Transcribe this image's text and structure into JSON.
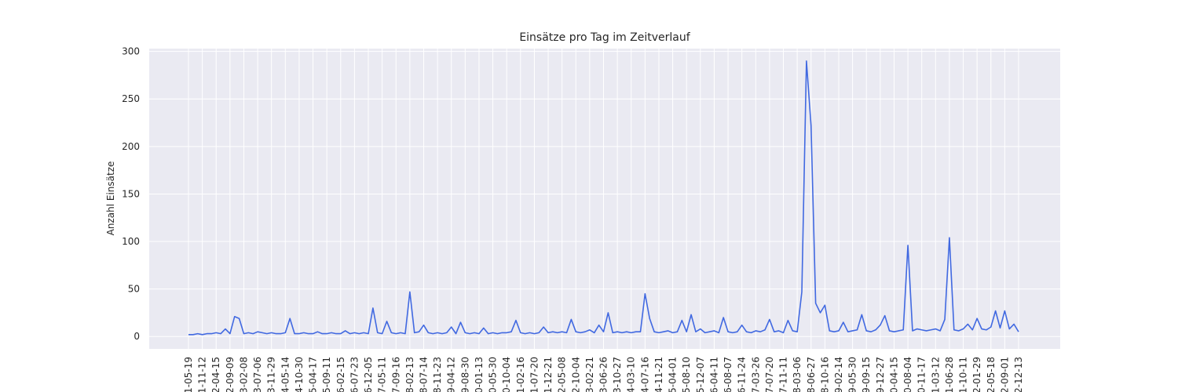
{
  "chart_data": {
    "type": "line",
    "title": "Einsätze pro Tag im Zeitverlauf",
    "y_label": "Anzahl Einsätze",
    "color": "#4169e1",
    "grid": true,
    "ylim": [
      -13,
      303
    ],
    "yticks": [
      0,
      50,
      100,
      150,
      200,
      250,
      300
    ],
    "categories": [
      "1-05-19",
      null,
      null,
      "1-11-12",
      null,
      null,
      "2-04-15",
      null,
      null,
      "2-09-09",
      null,
      null,
      "3-02-08",
      null,
      null,
      "3-07-06",
      null,
      null,
      "3-11-29",
      null,
      null,
      "4-05-14",
      null,
      null,
      "4-10-30",
      null,
      null,
      "5-04-17",
      null,
      null,
      "5-09-11",
      null,
      null,
      "6-02-15",
      null,
      null,
      "6-07-23",
      null,
      null,
      "6-12-05",
      null,
      null,
      "7-05-11",
      null,
      null,
      "7-09-16",
      null,
      null,
      "8-02-13",
      null,
      null,
      "8-07-14",
      null,
      null,
      "8-11-23",
      null,
      null,
      "9-04-12",
      null,
      null,
      "9-08-30",
      null,
      null,
      "0-01-13",
      null,
      null,
      "0-05-30",
      null,
      null,
      "0-10-04",
      null,
      null,
      "1-02-16",
      null,
      null,
      "1-07-20",
      null,
      null,
      "1-12-21",
      null,
      null,
      "2-05-08",
      null,
      null,
      "2-10-04",
      null,
      null,
      "3-02-21",
      null,
      null,
      "3-06-26",
      null,
      null,
      "3-10-27",
      null,
      null,
      "4-03-10",
      null,
      null,
      "4-07-16",
      null,
      null,
      "4-11-21",
      null,
      null,
      "5-04-01",
      null,
      null,
      "5-08-10",
      null,
      null,
      "5-12-07",
      null,
      null,
      "6-04-11",
      null,
      null,
      "6-08-07",
      null,
      null,
      "6-11-24",
      null,
      null,
      "7-03-26",
      null,
      null,
      "7-07-20",
      null,
      null,
      "7-11-11",
      null,
      null,
      "8-03-06",
      null,
      null,
      "8-06-27",
      null,
      null,
      "8-10-16",
      null,
      null,
      "9-02-14",
      null,
      null,
      "9-05-30",
      null,
      null,
      "9-09-15",
      null,
      null,
      "9-12-27",
      null,
      null,
      "0-04-15",
      null,
      null,
      "0-08-04",
      null,
      null,
      "0-11-17",
      null,
      null,
      "1-03-12",
      null,
      null,
      "1-06-28",
      null,
      null,
      "1-10-11",
      null,
      null,
      "2-01-29",
      null,
      null,
      "2-05-18",
      null,
      null,
      "2-09-01",
      null,
      null,
      "2-12-13"
    ],
    "values": [
      2,
      2,
      3,
      2,
      3,
      3,
      4,
      3,
      8,
      3,
      21,
      19,
      3,
      4,
      3,
      5,
      4,
      3,
      4,
      3,
      3,
      4,
      19,
      3,
      3,
      4,
      3,
      3,
      5,
      3,
      3,
      4,
      3,
      3,
      6,
      3,
      4,
      3,
      4,
      3,
      30,
      4,
      3,
      16,
      4,
      3,
      4,
      3,
      47,
      4,
      5,
      12,
      4,
      3,
      4,
      3,
      4,
      10,
      3,
      15,
      4,
      3,
      4,
      3,
      9,
      3,
      4,
      3,
      4,
      4,
      5,
      17,
      4,
      3,
      4,
      3,
      4,
      10,
      4,
      5,
      4,
      5,
      4,
      18,
      5,
      4,
      5,
      7,
      4,
      12,
      5,
      25,
      4,
      5,
      4,
      5,
      4,
      5,
      5,
      45,
      19,
      5,
      4,
      5,
      6,
      4,
      5,
      17,
      5,
      23,
      5,
      8,
      4,
      5,
      6,
      4,
      20,
      5,
      4,
      5,
      12,
      5,
      4,
      6,
      5,
      7,
      18,
      5,
      6,
      4,
      17,
      6,
      5,
      47,
      290,
      222,
      35,
      25,
      33,
      6,
      5,
      6,
      15,
      5,
      6,
      7,
      23,
      6,
      5,
      7,
      12,
      22,
      6,
      5,
      6,
      7,
      96,
      6,
      8,
      7,
      6,
      7,
      8,
      6,
      18,
      104,
      7,
      6,
      8,
      13,
      7,
      19,
      8,
      7,
      10,
      27,
      9,
      27,
      8,
      13,
      5
    ]
  }
}
